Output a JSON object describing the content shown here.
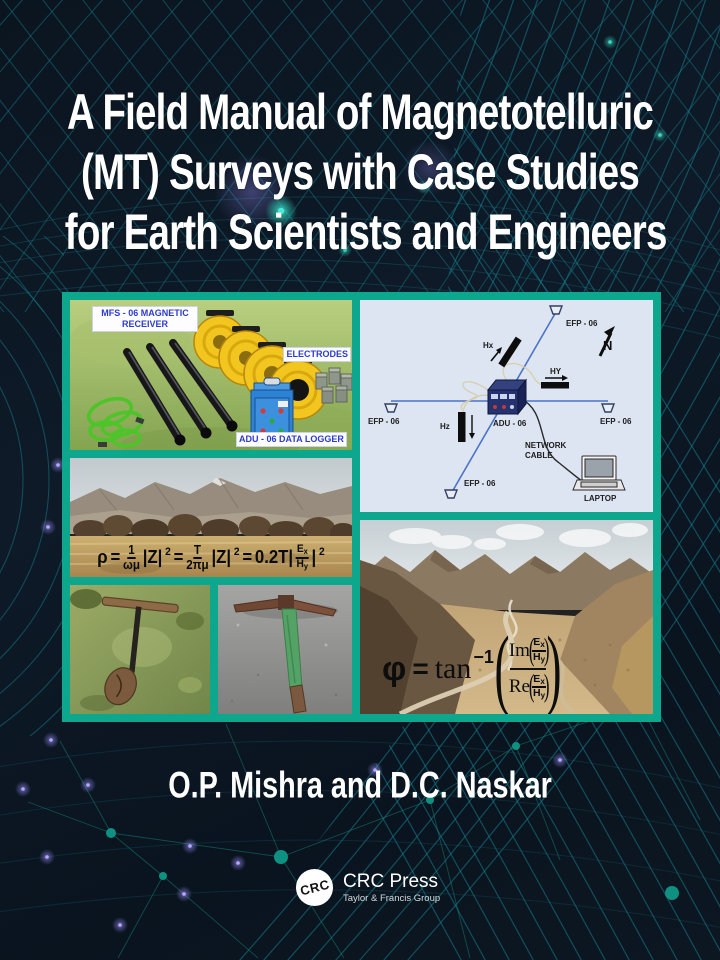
{
  "title": {
    "line1": "A Field Manual of Magnetotelluric",
    "line2": "(MT) Surveys with Case Studies",
    "line3": "for Earth Scientists and Engineers"
  },
  "authors": "O.P. Mishra and D.C. Naskar",
  "publisher": {
    "logo_text": "CRC",
    "name": "CRC Press",
    "tagline": "Taylor & Francis Group"
  },
  "collage": {
    "equipment": {
      "receiver_label": "MFS - 06 MAGNETIC RECEIVER",
      "electrodes_label": "ELECTRODES",
      "logger_label": "ADU - 06 DATA LOGGER"
    },
    "diagram": {
      "efp_top": "EFP - 06",
      "efp_left": "EFP - 06",
      "efp_right": "EFP - 06",
      "efp_bottom": "EFP - 06",
      "hx": "Hx",
      "hy": "HY",
      "hz": "Hz",
      "adu": "ADU - 06",
      "network_line1": "NETWORK",
      "network_line2": "CABLE",
      "laptop": "LAPTOP",
      "north": "N"
    },
    "rho_formula": {
      "rho": "ρ",
      "eq1": "=",
      "f1_num": "1",
      "f1_den": "ωμ",
      "z1": "|Z|",
      "z1_sup": "2",
      "eq2": "=",
      "f2_num": "T",
      "f2_den": "2πμ",
      "z2": "|Z|",
      "z2_sup": "2",
      "eq3": "=",
      "coef": "0.2T|",
      "e_base": "E",
      "e_sub": "x",
      "h_base": "H",
      "h_sub": "y",
      "close": "|",
      "close_sup": "2"
    },
    "phi_formula": {
      "phi": "φ",
      "eq": "=",
      "tan": "tan",
      "tan_sup": "−1",
      "im": "Im",
      "re": "Re",
      "open": "(",
      "close": ")",
      "e_base": "E",
      "e_sub": "x",
      "h_base": "H",
      "h_sub": "y"
    }
  },
  "colors": {
    "background": "#0d1824",
    "mesh_teal": "#15808f",
    "frame_teal": "#0ca78d",
    "diagram_background": "#dde4f2",
    "wire_blue": "#4a74c8",
    "label_blue": "#2b3bd0"
  }
}
